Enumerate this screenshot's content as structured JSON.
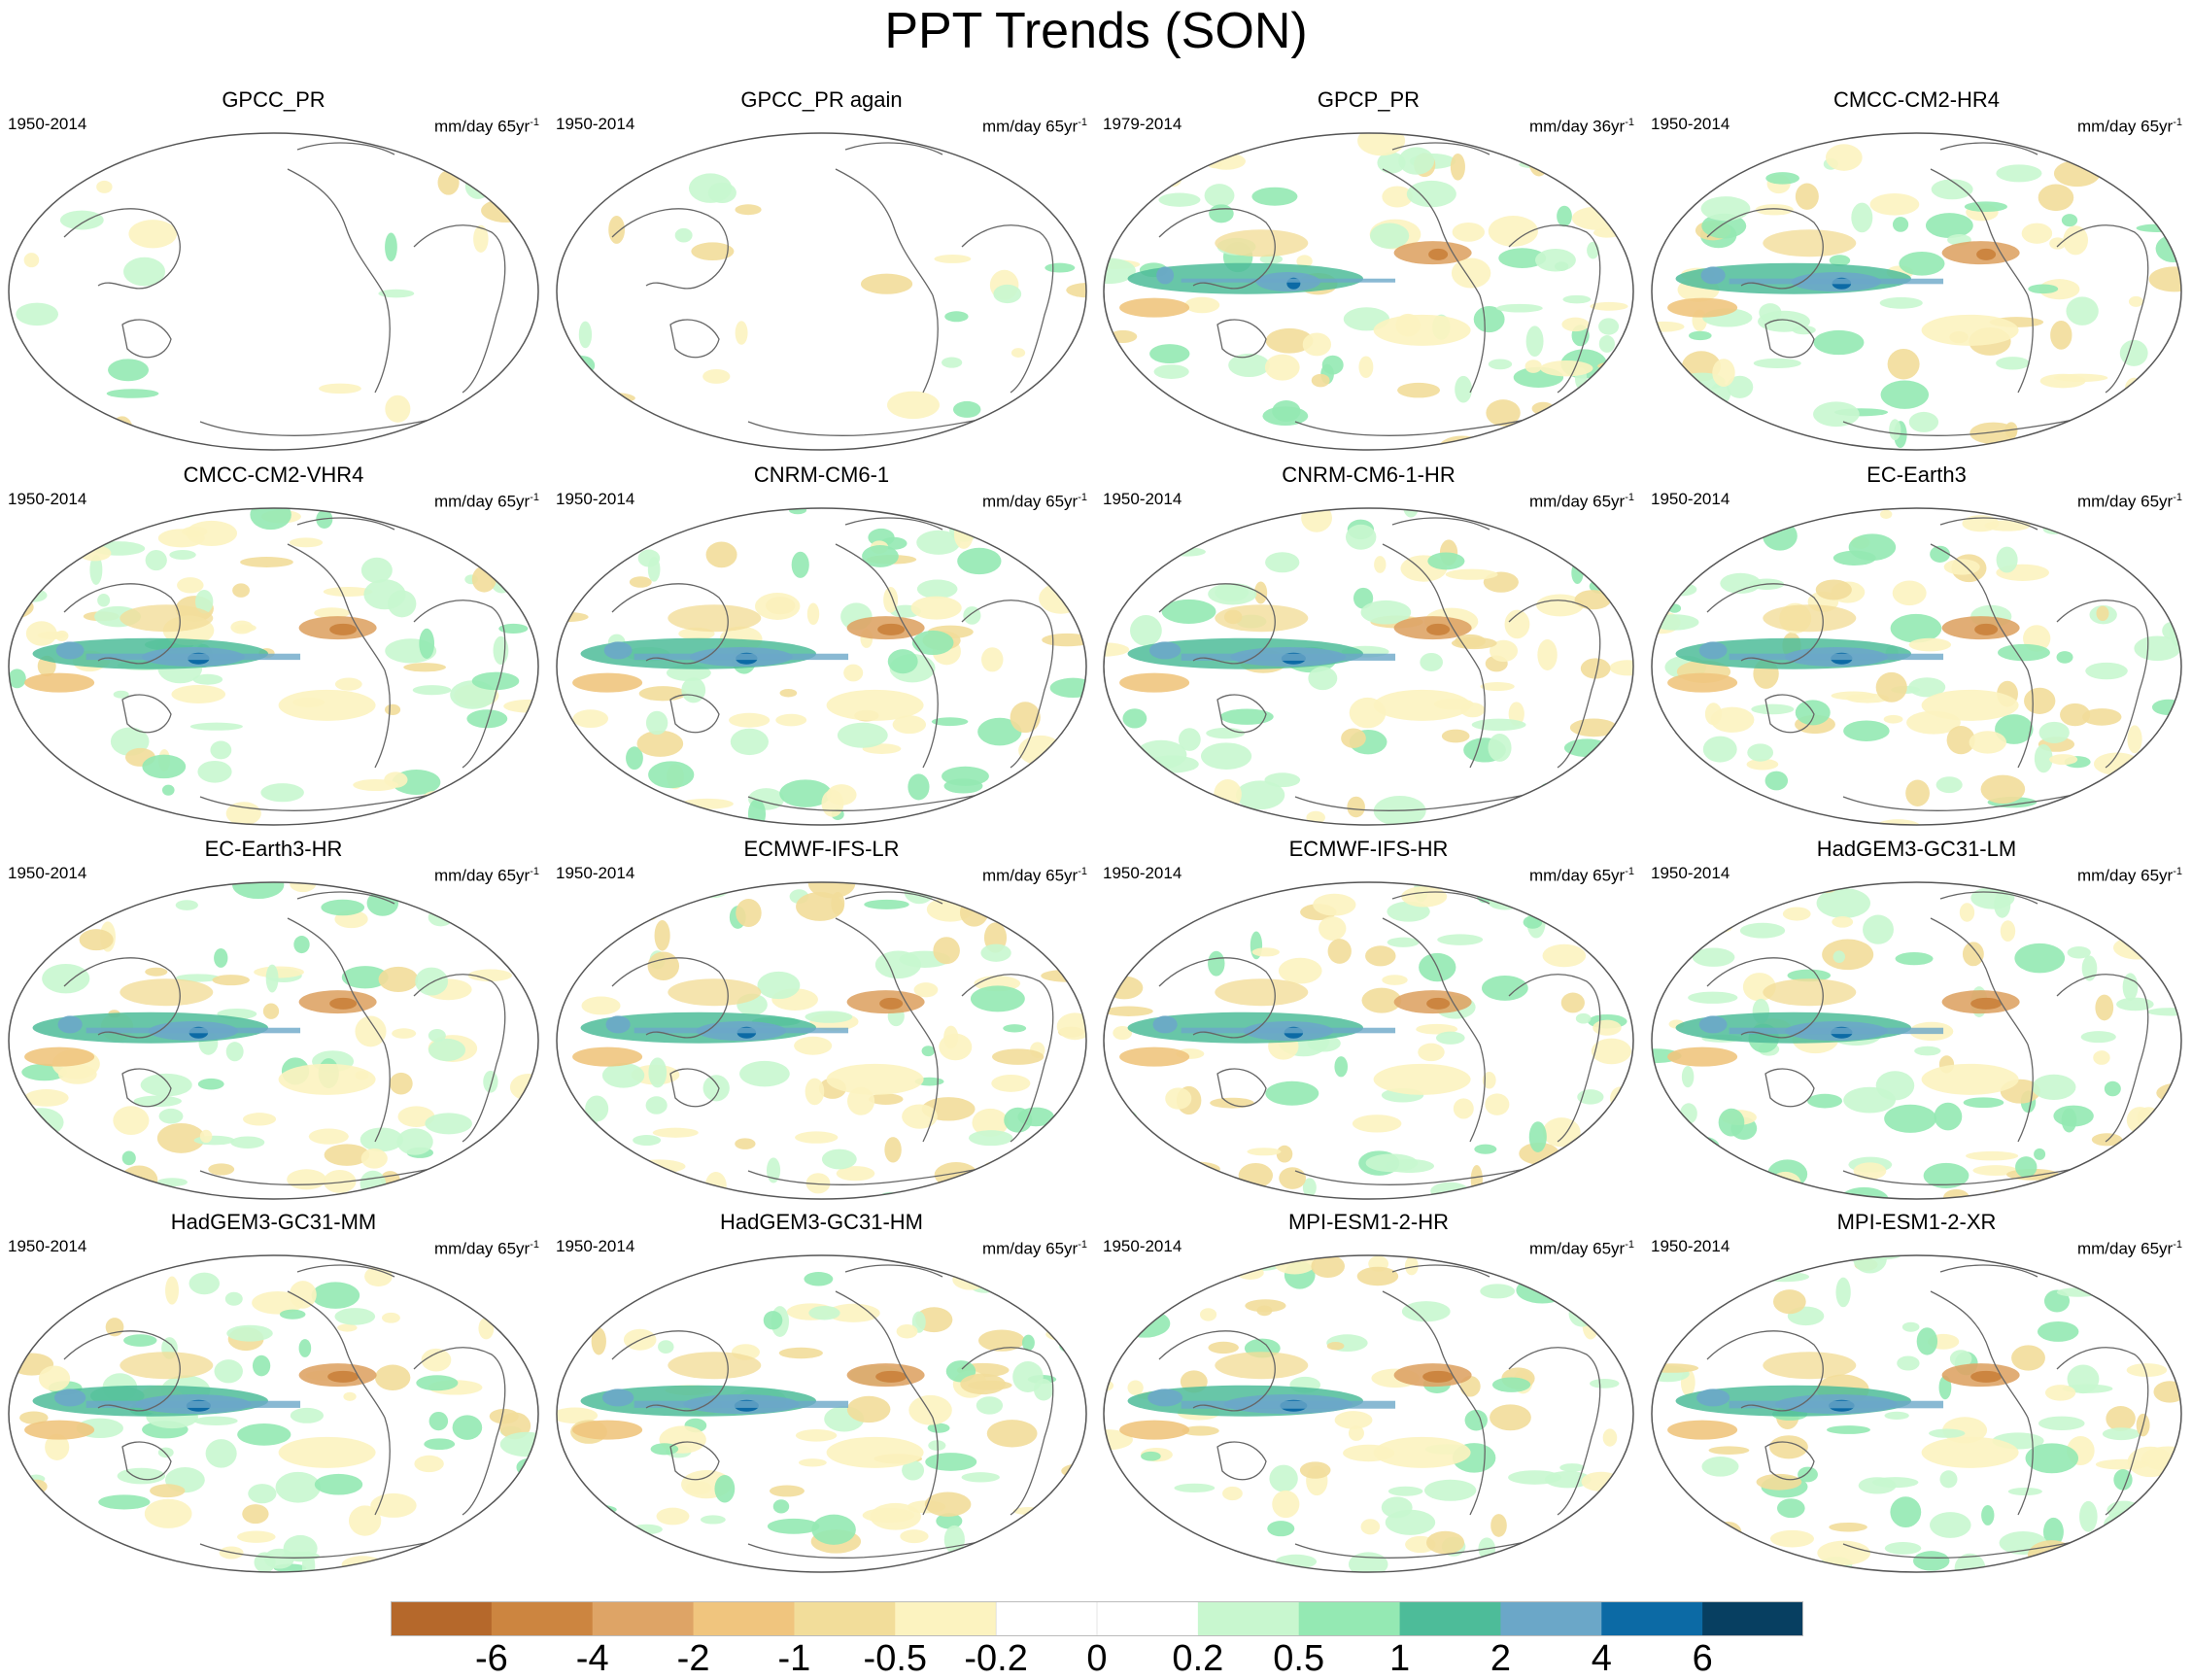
{
  "title": "PPT Trends (SON)",
  "panel_common": {
    "units_text": "mm/day",
    "colors": {
      "outline": "#555555",
      "coast": "#666666",
      "ocean": "#ffffff"
    }
  },
  "panels": [
    {
      "title": "GPCC_PR",
      "period": "1950-2014",
      "units": "mm/day 65yr",
      "units_exp": "-1",
      "coverage": "land-only",
      "wet_band": 0.0,
      "dry_band": 0.0
    },
    {
      "title": "GPCC_PR again",
      "period": "1950-2014",
      "units": "mm/day 65yr",
      "units_exp": "-1",
      "coverage": "land-only",
      "wet_band": 0.0,
      "dry_band": 0.0
    },
    {
      "title": "GPCP_PR",
      "period": "1979-2014",
      "units": "mm/day 36yr",
      "units_exp": "-1",
      "coverage": "global",
      "wet_band": 0.5,
      "dry_band": 0.5
    },
    {
      "title": "CMCC-CM2-HR4",
      "period": "1950-2014",
      "units": "mm/day 65yr",
      "units_exp": "-1",
      "coverage": "global",
      "wet_band": 0.7,
      "dry_band": 0.5
    },
    {
      "title": "CMCC-CM2-VHR4",
      "period": "1950-2014",
      "units": "mm/day 65yr",
      "units_exp": "-1",
      "coverage": "global",
      "wet_band": 0.8,
      "dry_band": 0.7
    },
    {
      "title": "CNRM-CM6-1",
      "period": "1950-2014",
      "units": "mm/day 65yr",
      "units_exp": "-1",
      "coverage": "global",
      "wet_band": 0.8,
      "dry_band": 0.7
    },
    {
      "title": "CNRM-CM6-1-HR",
      "period": "1950-2014",
      "units": "mm/day 65yr",
      "units_exp": "-1",
      "coverage": "global",
      "wet_band": 0.9,
      "dry_band": 0.6
    },
    {
      "title": "EC-Earth3",
      "period": "1950-2014",
      "units": "mm/day 65yr",
      "units_exp": "-1",
      "coverage": "global",
      "wet_band": 0.8,
      "dry_band": 0.6
    },
    {
      "title": "EC-Earth3-HR",
      "period": "1950-2014",
      "units": "mm/day 65yr",
      "units_exp": "-1",
      "coverage": "global",
      "wet_band": 0.7,
      "dry_band": 0.7
    },
    {
      "title": "ECMWF-IFS-LR",
      "period": "1950-2014",
      "units": "mm/day 65yr",
      "units_exp": "-1",
      "coverage": "global",
      "wet_band": 0.7,
      "dry_band": 0.6
    },
    {
      "title": "ECMWF-IFS-HR",
      "period": "1950-2014",
      "units": "mm/day 65yr",
      "units_exp": "-1",
      "coverage": "global",
      "wet_band": 0.7,
      "dry_band": 0.6
    },
    {
      "title": "HadGEM3-GC31-LM",
      "period": "1950-2014",
      "units": "mm/day 65yr",
      "units_exp": "-1",
      "coverage": "global",
      "wet_band": 0.8,
      "dry_band": 0.8
    },
    {
      "title": "HadGEM3-GC31-MM",
      "period": "1950-2014",
      "units": "mm/day 65yr",
      "units_exp": "-1",
      "coverage": "global",
      "wet_band": 0.9,
      "dry_band": 0.8
    },
    {
      "title": "HadGEM3-GC31-HM",
      "period": "1950-2014",
      "units": "mm/day 65yr",
      "units_exp": "-1",
      "coverage": "global",
      "wet_band": 0.9,
      "dry_band": 0.8
    },
    {
      "title": "MPI-ESM1-2-HR",
      "period": "1950-2014",
      "units": "mm/day 65yr",
      "units_exp": "-1",
      "coverage": "global",
      "wet_band": 1.0,
      "dry_band": 0.8
    },
    {
      "title": "MPI-ESM1-2-XR",
      "period": "1950-2014",
      "units": "mm/day 65yr",
      "units_exp": "-1",
      "coverage": "global",
      "wet_band": 0.95,
      "dry_band": 0.8
    }
  ],
  "colorbar": {
    "colors": [
      "#b5682b",
      "#cc8540",
      "#dea466",
      "#f0c57e",
      "#f2dd9a",
      "#fcf3c0",
      "#ffffff",
      "#ffffff",
      "#c8f7cf",
      "#94e9b3",
      "#4dbc99",
      "#6ba7c8",
      "#0c6aa5",
      "#073f61"
    ],
    "labels": [
      "-6",
      "-4",
      "-2",
      "-1",
      "-0.5",
      "-0.2",
      "0",
      "0.2",
      "0.5",
      "1",
      "2",
      "4",
      "6"
    ]
  }
}
